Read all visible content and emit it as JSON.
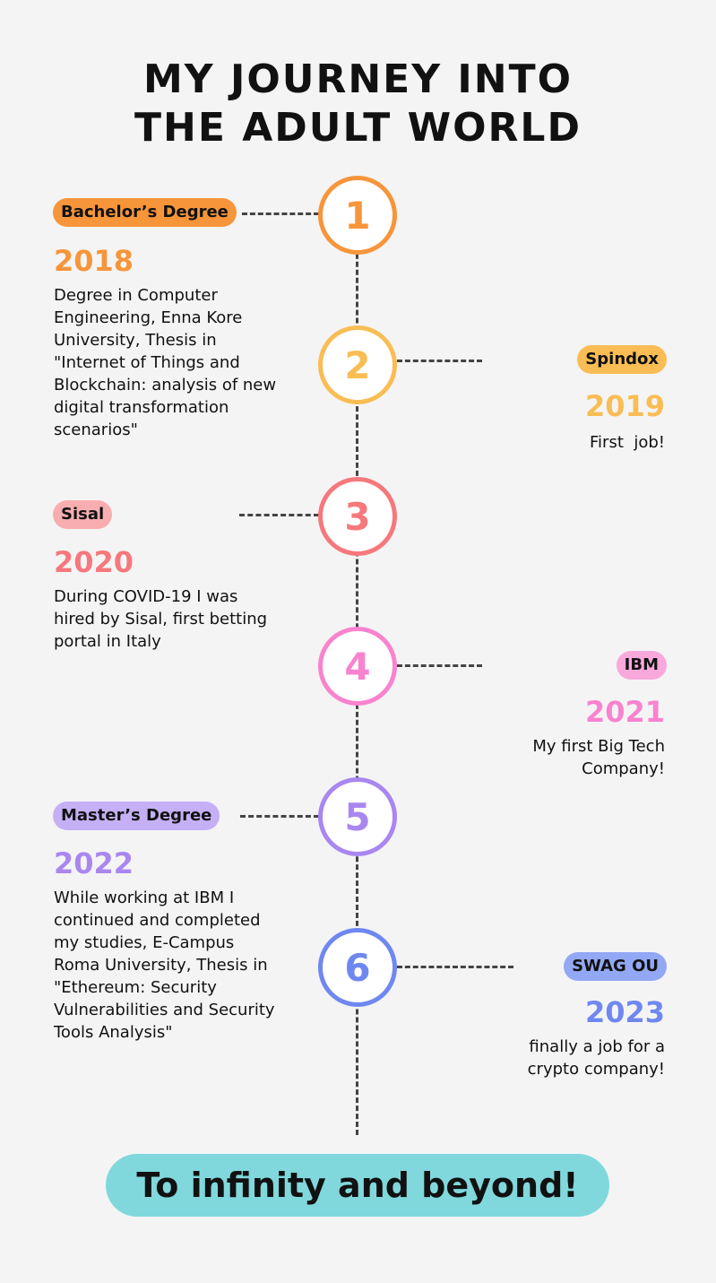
{
  "title_line1": "MY JOURNEY INTO",
  "title_line2": "THE ADULT WORLD",
  "colors": {
    "m1": "#f7953b",
    "m2": "#f9bd54",
    "m3": "#f6787d",
    "m4": "#f983cf",
    "m5": "#a987f0",
    "m6": "#6f88f1",
    "banner": "#80d8dc"
  },
  "milestones": [
    {
      "number": "1",
      "label": "Bachelor’s Degree",
      "year": "2018",
      "description": "Degree in Computer Engineering, Enna Kore University, Thesis in \"Internet of Things and Blockchain: analysis of new digital transformation scenarios\""
    },
    {
      "number": "2",
      "label": "Spindox",
      "year": "2019",
      "description": "First  job!"
    },
    {
      "number": "3",
      "label": "Sisal",
      "year": "2020",
      "description": "During COVID-19 I was hired by Sisal, first betting portal in Italy"
    },
    {
      "number": "4",
      "label": "IBM",
      "year": "2021",
      "description": "My first Big Tech Company!"
    },
    {
      "number": "5",
      "label": "Master’s Degree",
      "year": "2022",
      "description": "While working at IBM I continued and completed my studies, E-Campus Roma University, Thesis in \"Ethereum: Security Vulnerabilities and Security Tools Analysis\""
    },
    {
      "number": "6",
      "label": "SWAG OU",
      "year": "2023",
      "description": "finally a job for a crypto company!"
    }
  ],
  "banner": "To infinity and beyond!"
}
